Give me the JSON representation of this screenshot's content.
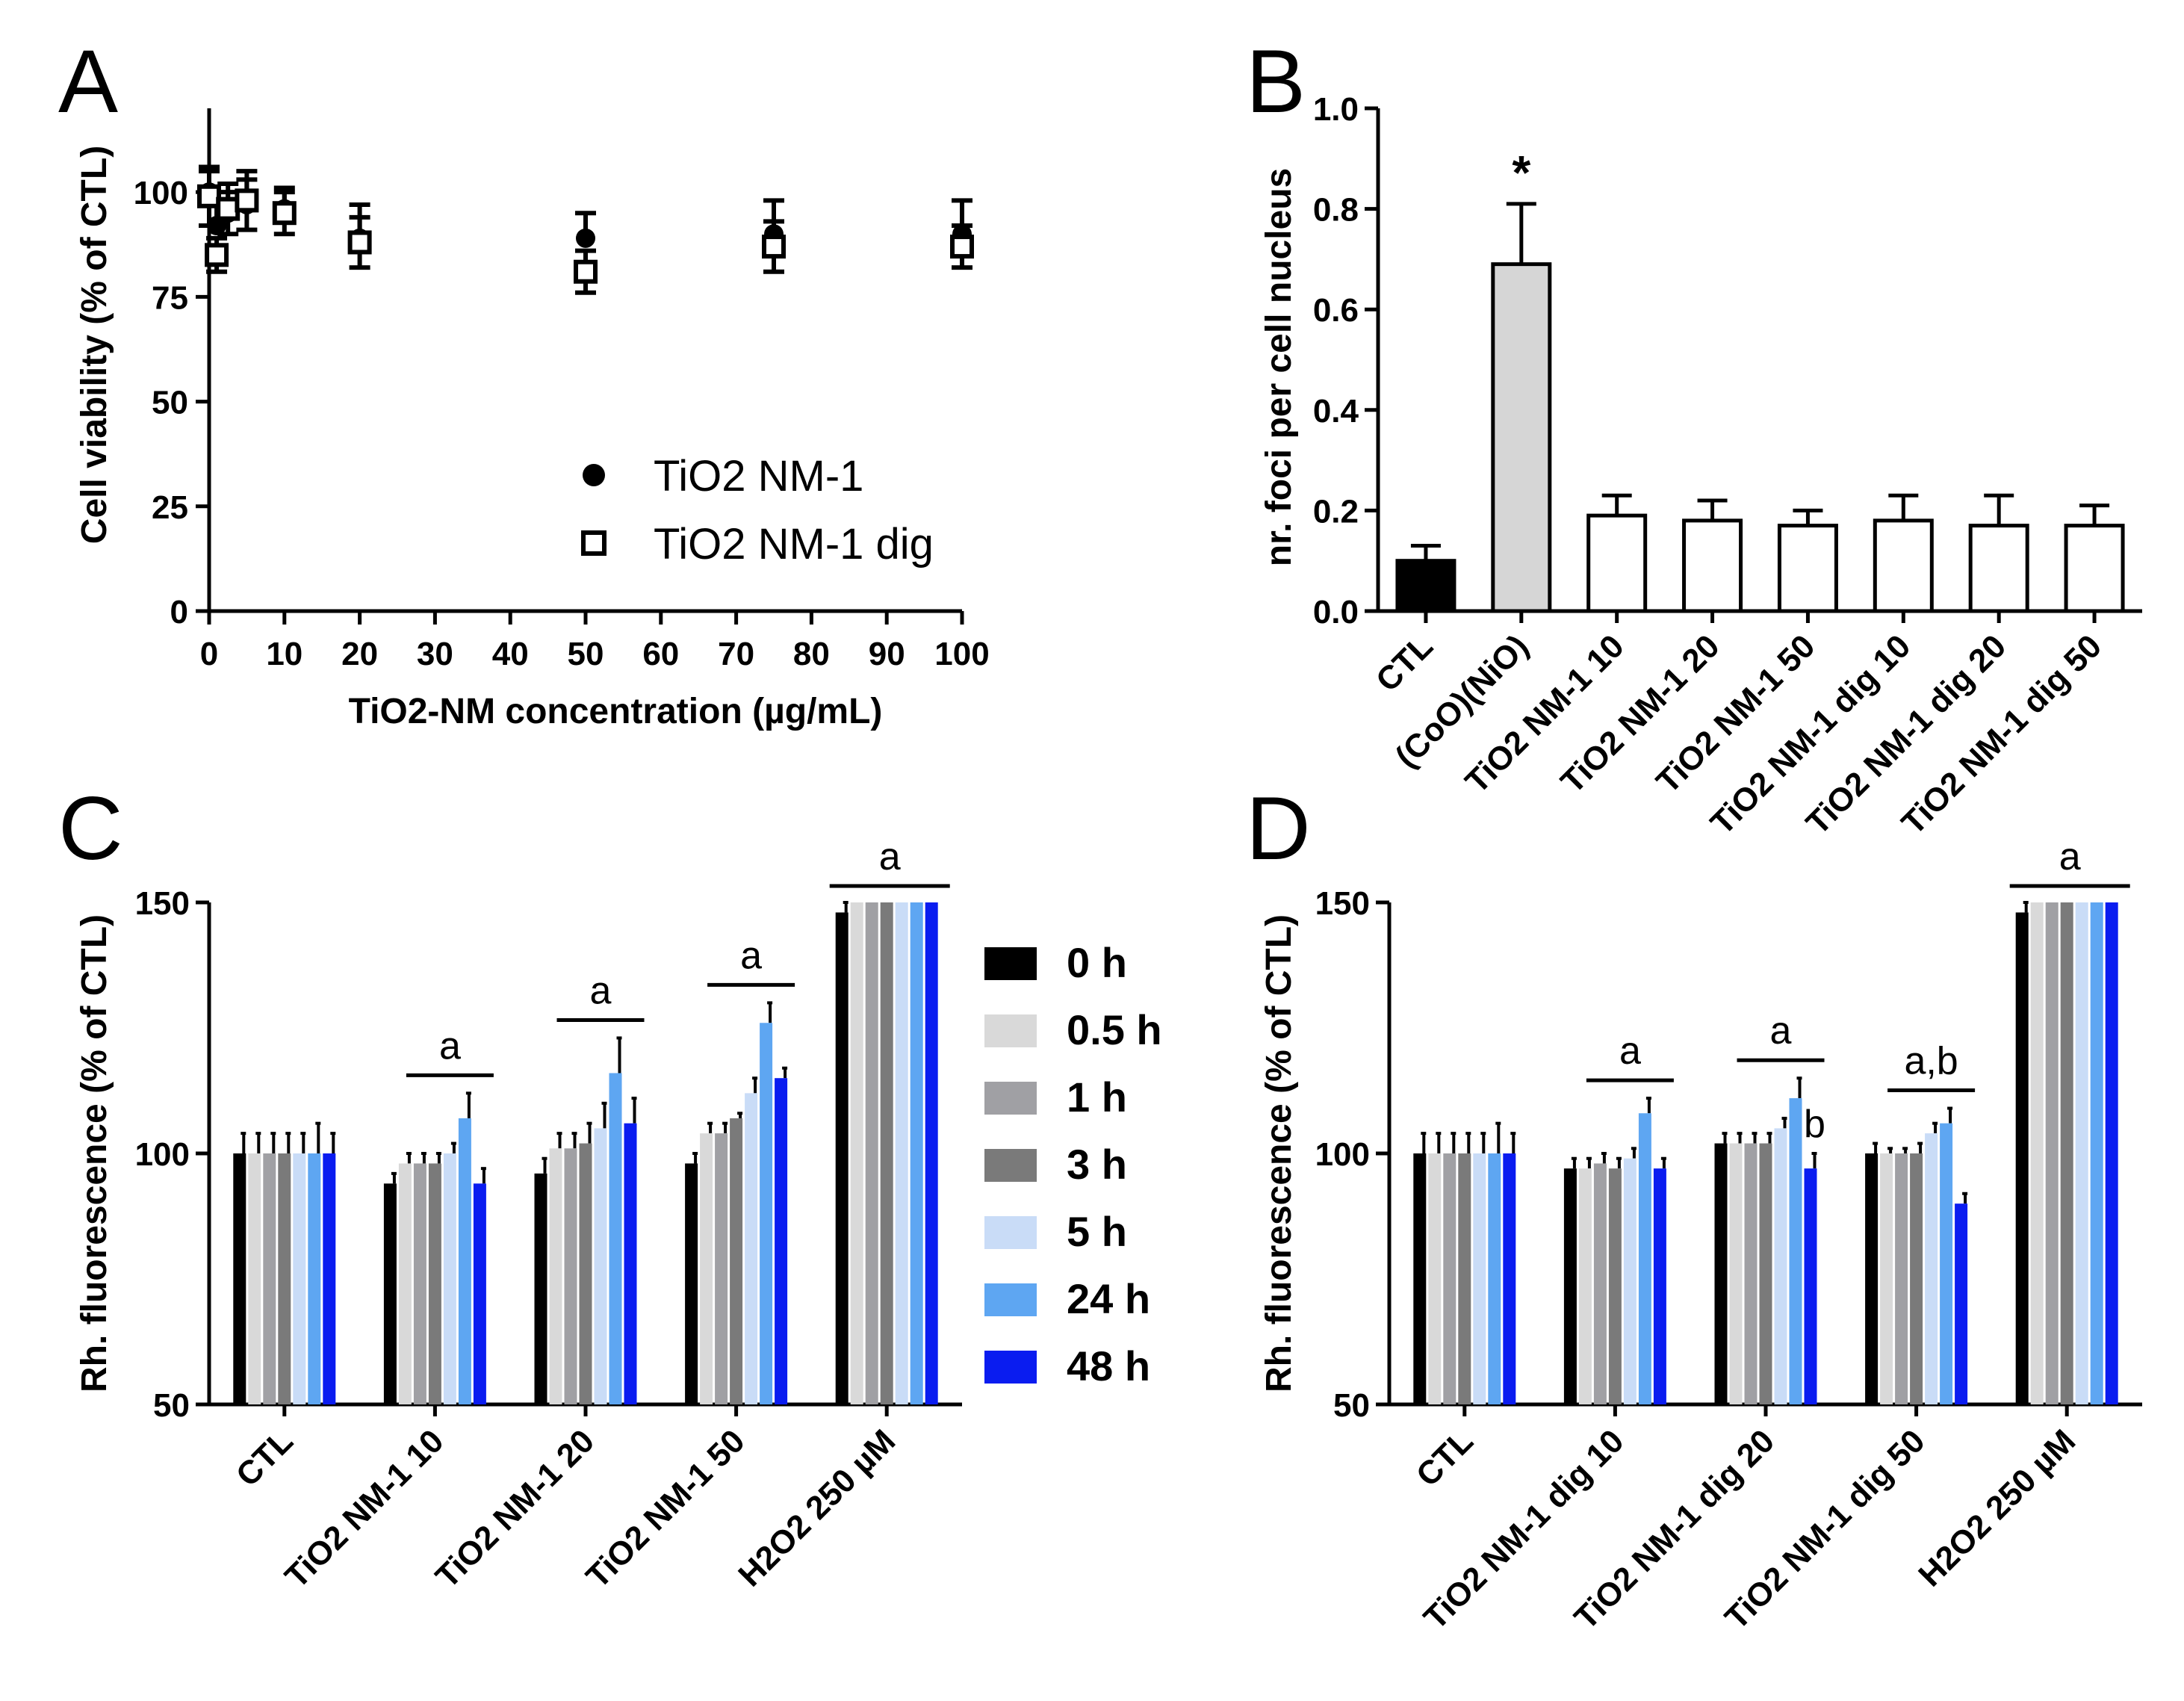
{
  "chart_data": [
    {
      "panel": "A",
      "type": "scatter",
      "xlabel": "TiO2-NM concentration (µg/mL)",
      "ylabel": "Cell viability (% of CTL)",
      "xlim": [
        0,
        100
      ],
      "ylim": [
        0,
        120
      ],
      "xticks": [
        "0",
        "10",
        "20",
        "30",
        "40",
        "50",
        "60",
        "70",
        "80",
        "90",
        "100"
      ],
      "yticks": [
        "0",
        "25",
        "50",
        "75",
        "100"
      ],
      "series": [
        {
          "name": "TiO2 NM-1",
          "marker": "filled-circle",
          "x": [
            0,
            1,
            2.5,
            5,
            10,
            20,
            50,
            75,
            100
          ],
          "y": [
            100,
            92,
            95,
            97,
            96,
            89,
            89,
            90,
            90
          ],
          "err": [
            5,
            6,
            5,
            6,
            5,
            8,
            6,
            8,
            8
          ]
        },
        {
          "name": "TiO2 NM-1 dig",
          "marker": "open-square",
          "x": [
            0,
            1,
            2.5,
            5,
            10,
            20,
            50,
            75,
            100
          ],
          "y": [
            99,
            85,
            96,
            98,
            95,
            88,
            81,
            87,
            87
          ],
          "err": [
            7,
            4,
            6,
            7,
            5,
            6,
            5,
            6,
            5
          ]
        }
      ]
    },
    {
      "panel": "B",
      "type": "bar",
      "ylabel": "nr. foci per cell nucleus",
      "ylim": [
        0,
        1.0
      ],
      "yticks": [
        "0.0",
        "0.2",
        "0.4",
        "0.6",
        "0.8",
        "1.0"
      ],
      "categories": [
        "CTL",
        "(CoO)(NiO)",
        "TiO2 NM-1 10",
        "TiO2 NM-1 20",
        "TiO2 NM-1 50",
        "TiO2 NM-1 dig 10",
        "TiO2 NM-1 dig 20",
        "TiO2 NM-1 dig 50"
      ],
      "values": [
        0.1,
        0.69,
        0.19,
        0.18,
        0.17,
        0.18,
        0.17,
        0.17
      ],
      "errors": [
        0.03,
        0.12,
        0.04,
        0.04,
        0.03,
        0.05,
        0.06,
        0.04
      ],
      "colors": [
        "#000000",
        "#d6d6d6",
        "#ffffff",
        "#ffffff",
        "#ffffff",
        "#ffffff",
        "#ffffff",
        "#ffffff"
      ],
      "annotations": [
        "",
        "*",
        "",
        "",
        "",
        "",
        "",
        ""
      ]
    },
    {
      "panel": "C",
      "type": "bar",
      "ylabel": "Rh. fluorescence (% of CTL)",
      "ylim": [
        50,
        150
      ],
      "yticks": [
        "50",
        "100",
        "150"
      ],
      "categories": [
        "CTL",
        "TiO2 NM-1 10",
        "TiO2 NM-1 20",
        "TiO2 NM-1 50",
        "H2O2 250 µM"
      ],
      "series": [
        {
          "name": "0 h",
          "values": [
            100,
            94,
            96,
            98,
            148
          ],
          "errors": [
            4,
            2,
            3,
            2,
            2
          ]
        },
        {
          "name": "0.5 h",
          "values": [
            100,
            98,
            101,
            104,
            150
          ],
          "errors": [
            4,
            2,
            3,
            2,
            0
          ]
        },
        {
          "name": "1 h",
          "values": [
            100,
            98,
            101,
            104,
            150
          ],
          "errors": [
            4,
            2,
            3,
            2,
            0
          ]
        },
        {
          "name": "3 h",
          "values": [
            100,
            98,
            102,
            107,
            150
          ],
          "errors": [
            4,
            2,
            4,
            1,
            0
          ]
        },
        {
          "name": "5 h",
          "values": [
            100,
            100,
            105,
            112,
            150
          ],
          "errors": [
            4,
            2,
            5,
            3,
            0
          ]
        },
        {
          "name": "24 h",
          "values": [
            100,
            107,
            116,
            126,
            150
          ],
          "errors": [
            6,
            5,
            7,
            4,
            0
          ]
        },
        {
          "name": "48 h",
          "values": [
            100,
            94,
            106,
            115,
            150
          ],
          "errors": [
            4,
            3,
            5,
            2,
            0
          ]
        }
      ],
      "group_annotations": [
        "",
        "a",
        "a",
        "a",
        "a"
      ]
    },
    {
      "panel": "D",
      "type": "bar",
      "ylabel": "Rh. fluorescence (% of CTL)",
      "ylim": [
        50,
        150
      ],
      "yticks": [
        "50",
        "100",
        "150"
      ],
      "categories": [
        "CTL",
        "TiO2 NM-1 dig 10",
        "TiO2 NM-1 dig 20",
        "TiO2 NM-1 dig 50",
        "H2O2 250 µM"
      ],
      "series": [
        {
          "name": "0 h",
          "values": [
            100,
            97,
            102,
            100,
            148
          ],
          "errors": [
            4,
            2,
            2,
            2,
            2
          ]
        },
        {
          "name": "0.5 h",
          "values": [
            100,
            97,
            102,
            100,
            150
          ],
          "errors": [
            4,
            2,
            2,
            1,
            0
          ]
        },
        {
          "name": "1 h",
          "values": [
            100,
            98,
            102,
            100,
            150
          ],
          "errors": [
            4,
            2,
            2,
            1,
            0
          ]
        },
        {
          "name": "3 h",
          "values": [
            100,
            97,
            102,
            100,
            150
          ],
          "errors": [
            4,
            2,
            2,
            2,
            0
          ]
        },
        {
          "name": "5 h",
          "values": [
            100,
            99,
            105,
            104,
            150
          ],
          "errors": [
            4,
            2,
            2,
            2,
            0
          ]
        },
        {
          "name": "24 h",
          "values": [
            100,
            108,
            111,
            106,
            150
          ],
          "errors": [
            6,
            3,
            4,
            3,
            0
          ]
        },
        {
          "name": "48 h",
          "values": [
            100,
            97,
            97,
            90,
            150
          ],
          "errors": [
            4,
            2,
            3,
            2,
            0
          ]
        }
      ],
      "group_annotations": [
        "",
        "a",
        "a",
        "a,b",
        "a"
      ],
      "bar_annotation": {
        "group": 2,
        "series": 6,
        "text": "b"
      }
    }
  ],
  "legend_colors": [
    "#000000",
    "#d9d9d9",
    "#a0a0a4",
    "#7a7a7a",
    "#c9dcf7",
    "#5ea6f2",
    "#0a1cf0"
  ],
  "panel_labels": [
    "A",
    "B",
    "C",
    "D"
  ]
}
